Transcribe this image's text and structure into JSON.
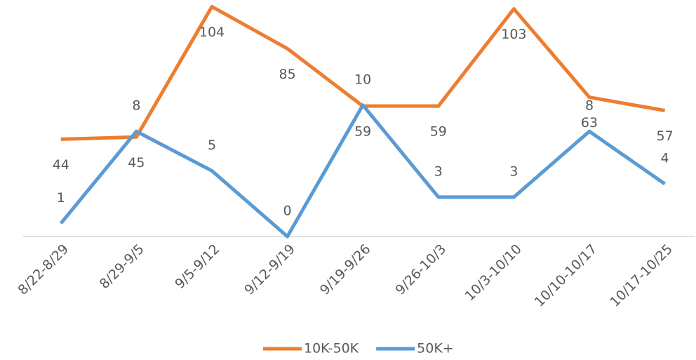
{
  "chart_data": {
    "type": "line",
    "categories": [
      "8/22-8/29",
      "8/29-9/5",
      "9/5-9/12",
      "9/12-9/19",
      "9/19-9/26",
      "9/26-10/3",
      "10/3-10/10",
      "10/10-10/17",
      "10/17-10/25"
    ],
    "series": [
      {
        "name": "10K-50K",
        "color": "#ED7D31",
        "values": [
          44,
          45,
          104,
          85,
          59,
          59,
          103,
          63,
          57
        ]
      },
      {
        "name": "50K+",
        "color": "#5B9BD5",
        "axis": "y2",
        "values": [
          1,
          8,
          5,
          0,
          10,
          3,
          3,
          8,
          4
        ]
      }
    ],
    "ylim": [
      0,
      107
    ],
    "y2lim": [
      0,
      18
    ],
    "legend": "bottom"
  }
}
